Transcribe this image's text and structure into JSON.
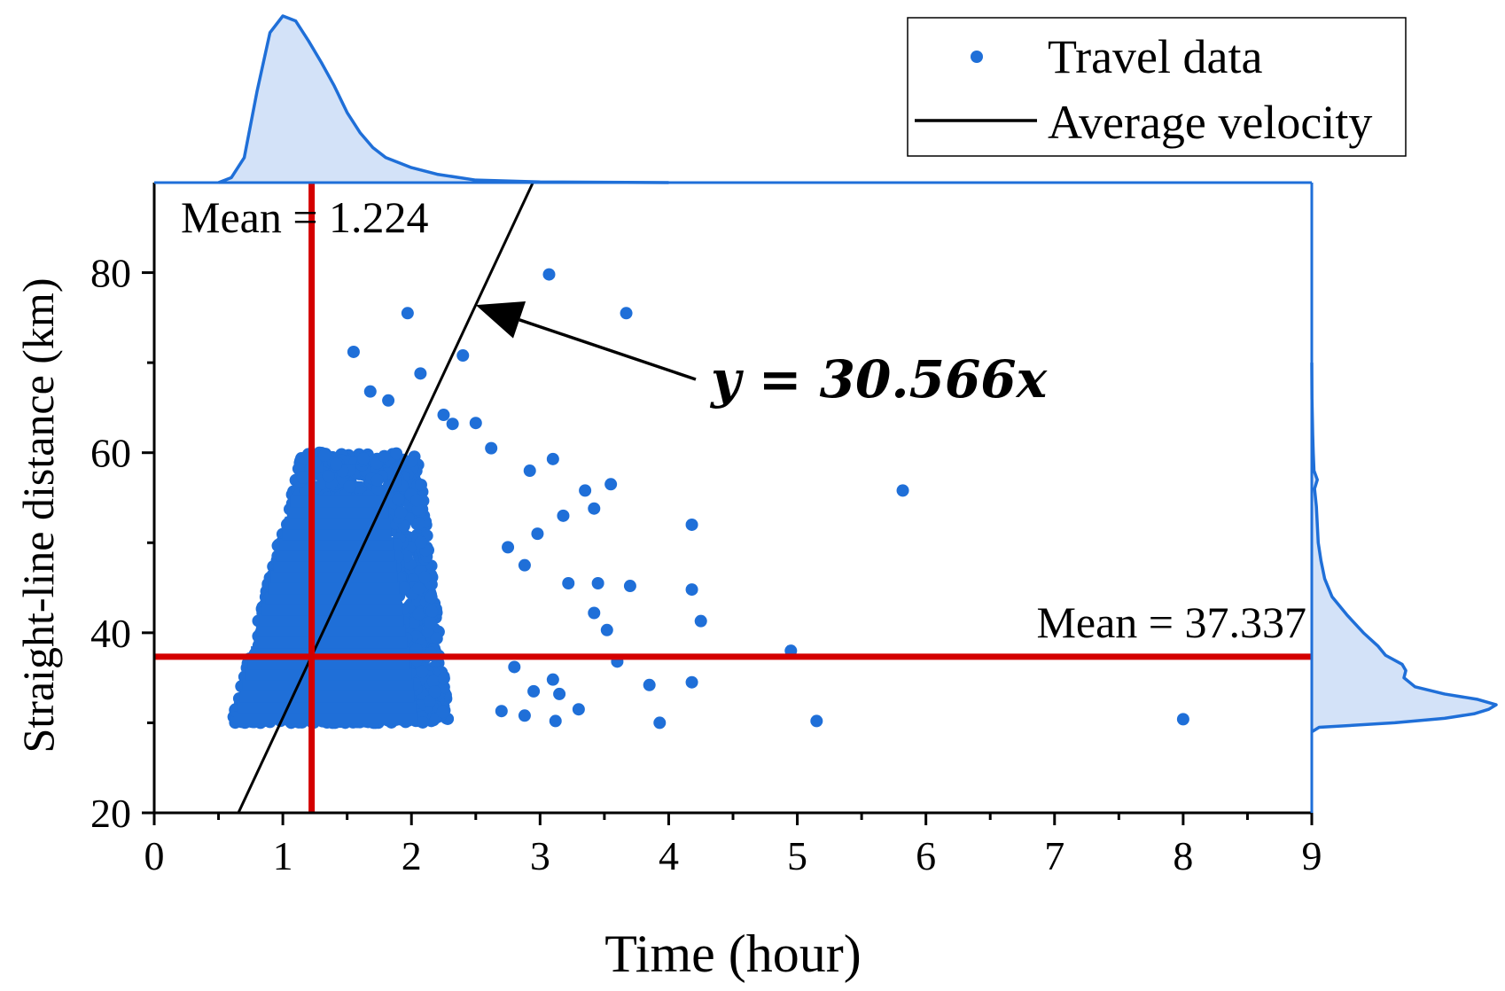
{
  "chart_data": {
    "type": "scatter",
    "title": "",
    "xlabel": "Time (hour)",
    "ylabel": "Straight-line distance (km)",
    "xlim": [
      0,
      9
    ],
    "ylim": [
      20,
      90
    ],
    "xticks": [
      0,
      1,
      2,
      3,
      4,
      5,
      6,
      7,
      8,
      9
    ],
    "yticks": [
      20,
      40,
      60,
      80
    ],
    "xtick_labels": [
      "0",
      "1",
      "2",
      "3",
      "4",
      "5",
      "6",
      "7",
      "8",
      "9"
    ],
    "ytick_labels": [
      "20",
      "40",
      "60",
      "80"
    ],
    "legend": {
      "position": "top-right",
      "entries": [
        {
          "label": "Travel data",
          "marker": "dot",
          "color": "#1f6fd8"
        },
        {
          "label": "Average velocity",
          "marker": "line",
          "color": "#000000"
        }
      ]
    },
    "series": [
      {
        "name": "Travel data",
        "color": "#1f6fd8",
        "cluster": {
          "x_range": [
            0.55,
            2.3
          ],
          "y_range": [
            30,
            60
          ],
          "count": 2000
        },
        "points": [
          {
            "x": 3.07,
            "y": 79.8
          },
          {
            "x": 1.97,
            "y": 75.5
          },
          {
            "x": 3.67,
            "y": 75.5
          },
          {
            "x": 2.4,
            "y": 70.8
          },
          {
            "x": 2.07,
            "y": 68.8
          },
          {
            "x": 1.55,
            "y": 71.2
          },
          {
            "x": 1.82,
            "y": 65.8
          },
          {
            "x": 1.68,
            "y": 66.8
          },
          {
            "x": 2.25,
            "y": 64.2
          },
          {
            "x": 2.32,
            "y": 63.2
          },
          {
            "x": 2.5,
            "y": 63.3
          },
          {
            "x": 2.62,
            "y": 60.5
          },
          {
            "x": 3.1,
            "y": 59.3
          },
          {
            "x": 2.92,
            "y": 58.0
          },
          {
            "x": 3.55,
            "y": 56.5
          },
          {
            "x": 3.35,
            "y": 55.8
          },
          {
            "x": 3.42,
            "y": 53.8
          },
          {
            "x": 5.82,
            "y": 55.8
          },
          {
            "x": 3.18,
            "y": 53.0
          },
          {
            "x": 4.18,
            "y": 52.0
          },
          {
            "x": 2.98,
            "y": 51.0
          },
          {
            "x": 2.75,
            "y": 49.5
          },
          {
            "x": 2.88,
            "y": 47.5
          },
          {
            "x": 3.22,
            "y": 45.5
          },
          {
            "x": 3.45,
            "y": 45.5
          },
          {
            "x": 3.7,
            "y": 45.2
          },
          {
            "x": 4.18,
            "y": 44.8
          },
          {
            "x": 3.42,
            "y": 42.2
          },
          {
            "x": 4.25,
            "y": 41.3
          },
          {
            "x": 3.52,
            "y": 40.3
          },
          {
            "x": 4.95,
            "y": 38.0
          },
          {
            "x": 3.6,
            "y": 36.8
          },
          {
            "x": 3.1,
            "y": 34.8
          },
          {
            "x": 3.85,
            "y": 34.2
          },
          {
            "x": 4.18,
            "y": 34.5
          },
          {
            "x": 3.15,
            "y": 33.2
          },
          {
            "x": 3.3,
            "y": 31.5
          },
          {
            "x": 3.12,
            "y": 30.2
          },
          {
            "x": 3.93,
            "y": 30.0
          },
          {
            "x": 5.15,
            "y": 30.2
          },
          {
            "x": 8.0,
            "y": 30.4
          },
          {
            "x": 2.88,
            "y": 30.8
          },
          {
            "x": 2.7,
            "y": 31.3
          },
          {
            "x": 2.95,
            "y": 33.5
          },
          {
            "x": 2.8,
            "y": 36.2
          }
        ]
      },
      {
        "name": "Average velocity",
        "slope": 30.566,
        "color": "#000000"
      }
    ],
    "mean_lines": [
      {
        "axis": "x",
        "value": 1.224,
        "label": "Mean = 1.224",
        "color": "#d40000"
      },
      {
        "axis": "y",
        "value": 37.337,
        "label": "Mean = 37.337",
        "color": "#d40000"
      }
    ],
    "annotation": {
      "text": "y = 30.566x",
      "arrow_to": {
        "x": 2.5,
        "y": 76.4
      }
    },
    "marginal_x_density": {
      "color": "#1f6fd8",
      "fill": "#d3e2f8",
      "peak_at": 1.0,
      "samples": [
        [
          0.5,
          0.0
        ],
        [
          0.6,
          0.03
        ],
        [
          0.7,
          0.15
        ],
        [
          0.8,
          0.55
        ],
        [
          0.9,
          0.9
        ],
        [
          1.0,
          1.0
        ],
        [
          1.1,
          0.97
        ],
        [
          1.2,
          0.85
        ],
        [
          1.3,
          0.72
        ],
        [
          1.4,
          0.58
        ],
        [
          1.5,
          0.42
        ],
        [
          1.6,
          0.3
        ],
        [
          1.7,
          0.21
        ],
        [
          1.8,
          0.15
        ],
        [
          2.0,
          0.09
        ],
        [
          2.2,
          0.05
        ],
        [
          2.5,
          0.015
        ],
        [
          3.0,
          0.004
        ],
        [
          4.0,
          0.0
        ]
      ]
    },
    "marginal_y_density": {
      "color": "#1f6fd8",
      "fill": "#d3e2f8",
      "peak_at": 32,
      "samples": [
        [
          29,
          0.0
        ],
        [
          29.5,
          0.04
        ],
        [
          30,
          0.45
        ],
        [
          30.5,
          0.72
        ],
        [
          31,
          0.88
        ],
        [
          31.5,
          0.96
        ],
        [
          32,
          1.0
        ],
        [
          32.6,
          0.9
        ],
        [
          33.2,
          0.72
        ],
        [
          34,
          0.56
        ],
        [
          35,
          0.5
        ],
        [
          35.8,
          0.51
        ],
        [
          36.5,
          0.49
        ],
        [
          37.5,
          0.4
        ],
        [
          38.5,
          0.36
        ],
        [
          40,
          0.28
        ],
        [
          42,
          0.19
        ],
        [
          44,
          0.11
        ],
        [
          46,
          0.07
        ],
        [
          48,
          0.05
        ],
        [
          50,
          0.035
        ],
        [
          52,
          0.03
        ],
        [
          54,
          0.025
        ],
        [
          56,
          0.015
        ],
        [
          57,
          0.03
        ],
        [
          58,
          0.012
        ],
        [
          60,
          0.008
        ],
        [
          62,
          0.005
        ],
        [
          66,
          0.001
        ],
        [
          70,
          0.0
        ]
      ]
    }
  }
}
